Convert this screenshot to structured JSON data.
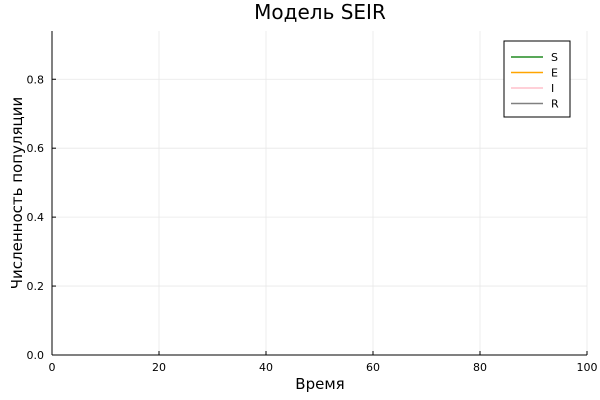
{
  "chart_data": {
    "type": "line",
    "title": "Модель SEIR",
    "xlabel": "Время",
    "ylabel": "Численность популяции",
    "xlim": [
      0,
      100
    ],
    "ylim": [
      0,
      0.94
    ],
    "x_ticks": [
      0,
      20,
      40,
      60,
      80,
      100
    ],
    "y_ticks": [
      0.0,
      0.2,
      0.4,
      0.6,
      0.8
    ],
    "x_tick_labels": [
      "0",
      "20",
      "40",
      "60",
      "80",
      "100"
    ],
    "y_tick_labels": [
      "0.0",
      "0.2",
      "0.4",
      "0.6",
      "0.8"
    ],
    "grid": true,
    "legend_position": "top-right",
    "series": [
      {
        "name": "S",
        "color": "#228b22",
        "x": [],
        "y": []
      },
      {
        "name": "E",
        "color": "#ffa500",
        "x": [],
        "y": []
      },
      {
        "name": "I",
        "color": "#ffc0cb",
        "x": [],
        "y": []
      },
      {
        "name": "R",
        "color": "#808080",
        "x": [],
        "y": []
      }
    ]
  }
}
